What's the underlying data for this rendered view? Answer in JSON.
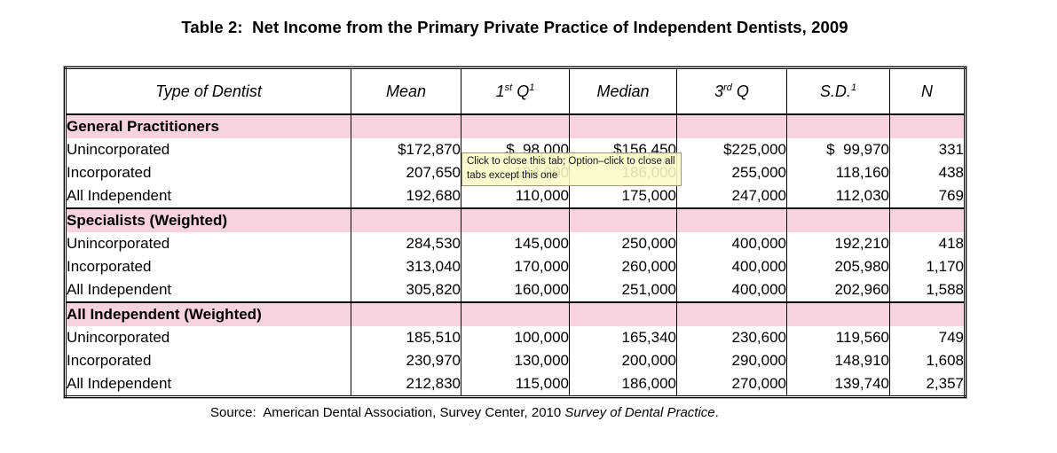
{
  "title": "Table 2:  Net Income from the Primary Private Practice of Independent Dentists, 2009",
  "tooltip": {
    "line1": "Click to close this tab; Option–click to close all",
    "line2": "tabs except this one"
  },
  "table": {
    "columns": {
      "type": "Type of Dentist",
      "mean": "Mean",
      "q1": {
        "base": "1",
        "sup": "st",
        "rest": " Q",
        "sup2": "1"
      },
      "median": "Median",
      "q3": {
        "base": "3",
        "sup": "rd",
        "rest": " Q"
      },
      "sd": {
        "base": "S.D.",
        "sup": "1"
      },
      "n": "N"
    },
    "sections": [
      {
        "header": "General Practitioners",
        "rows": [
          {
            "label": "Unincorporated",
            "cells": [
              "$172,870",
              "$  98,000",
              "$156,450",
              "$225,000",
              "$  99,970",
              "331"
            ]
          },
          {
            "label": "Incorporated",
            "cells": [
              "207,650",
              "124,000",
              "186,000",
              "255,000",
              "118,160",
              "438"
            ]
          },
          {
            "label": "All Independent",
            "cells": [
              "192,680",
              "110,000",
              "175,000",
              "247,000",
              "112,030",
              "769"
            ]
          }
        ]
      },
      {
        "header": "Specialists (Weighted)",
        "rows": [
          {
            "label": "Unincorporated",
            "cells": [
              "284,530",
              "145,000",
              "250,000",
              "400,000",
              "192,210",
              "418"
            ]
          },
          {
            "label": "Incorporated",
            "cells": [
              "313,040",
              "170,000",
              "260,000",
              "400,000",
              "205,980",
              "1,170"
            ]
          },
          {
            "label": "All Independent",
            "cells": [
              "305,820",
              "160,000",
              "251,000",
              "400,000",
              "202,960",
              "1,588"
            ]
          }
        ]
      },
      {
        "header": "All Independent (Weighted)",
        "rows": [
          {
            "label": "Unincorporated",
            "cells": [
              "185,510",
              "100,000",
              "165,340",
              "230,600",
              "119,560",
              "749"
            ]
          },
          {
            "label": "Incorporated",
            "cells": [
              "230,970",
              "130,000",
              "200,000",
              "290,000",
              "148,910",
              "1,608"
            ]
          },
          {
            "label": "All Independent",
            "cells": [
              "212,830",
              "115,000",
              "186,000",
              "270,000",
              "139,740",
              "2,357"
            ]
          }
        ]
      }
    ]
  },
  "source": {
    "prefix": "Source:  American Dental Association, Survey Center, 2010 ",
    "italic": "Survey of Dental Practice",
    "suffix": "."
  },
  "colors": {
    "band_pink": "#f8d2df",
    "tooltip_bg": "#fbfbc7",
    "tooltip_border": "#96967e"
  }
}
